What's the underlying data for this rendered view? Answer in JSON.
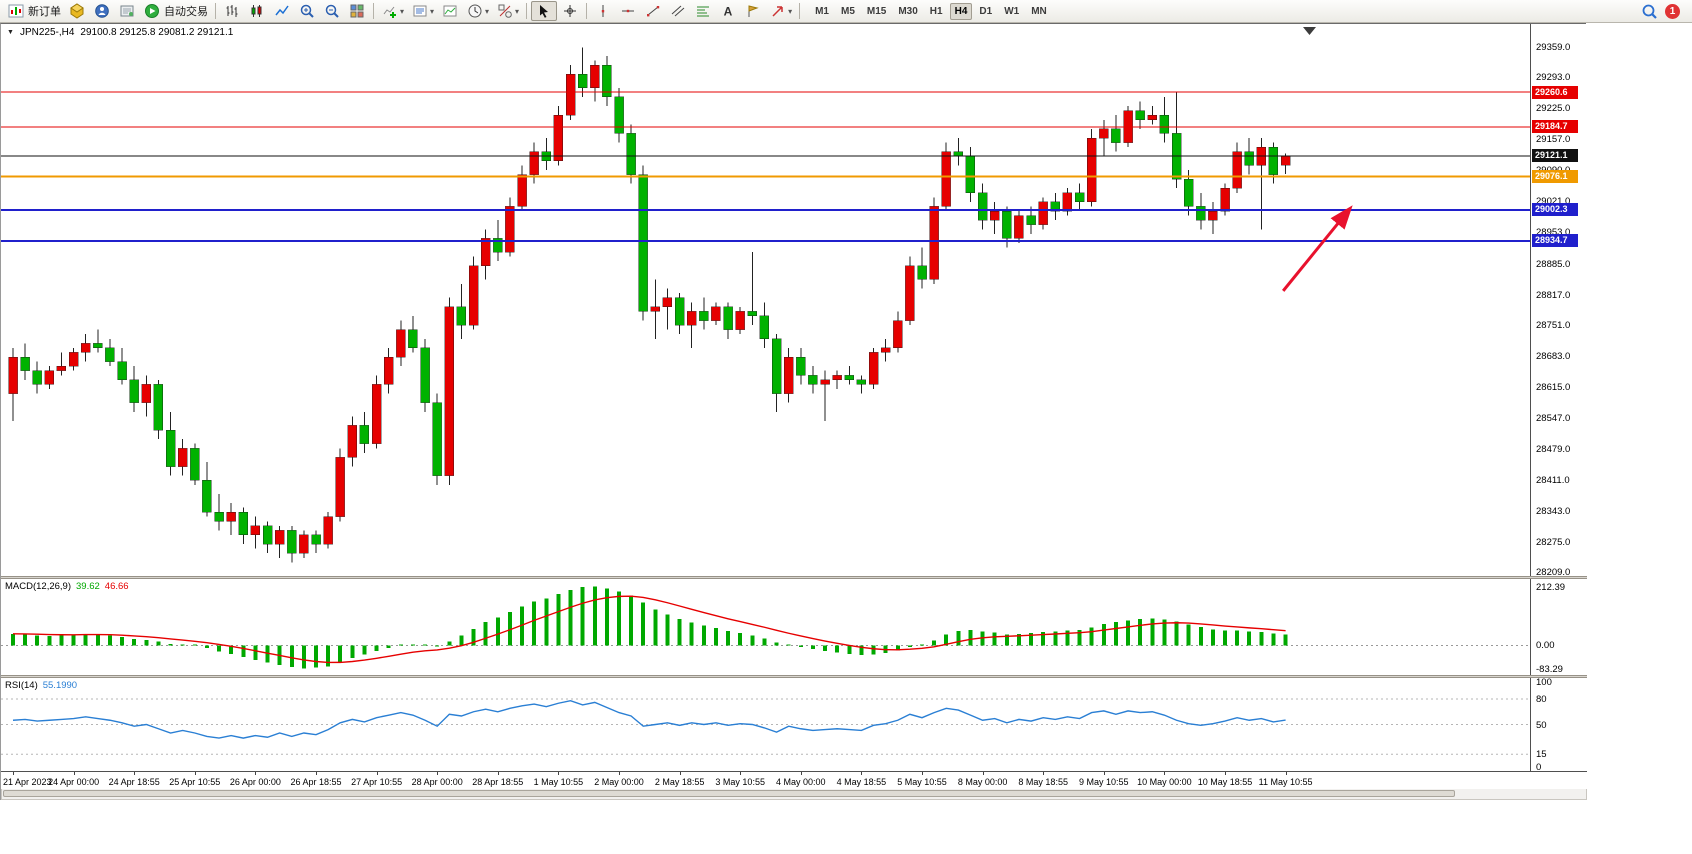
{
  "toolbar": {
    "new_order_label": "新订单",
    "auto_trading_label": "自动交易",
    "timeframes": [
      "M1",
      "M5",
      "M15",
      "M30",
      "H1",
      "H4",
      "D1",
      "W1",
      "MN"
    ],
    "active_timeframe": "H4",
    "notification_count": "1",
    "icons": [
      "new-order-icon",
      "market-watch-icon",
      "navigator-icon",
      "terminal-icon",
      "auto-trading-icon",
      "bar-chart-icon",
      "candlestick-chart-icon",
      "line-chart-icon",
      "zoom-in-icon",
      "zoom-out-icon",
      "tile-windows-icon",
      "indicators-icon",
      "indicator-list-icon",
      "template-icon",
      "period-icon",
      "objects-icon",
      "cursor-icon",
      "crosshair-icon",
      "vertical-line-icon",
      "horizontal-line-icon",
      "trendline-icon",
      "channel-icon",
      "fibonacci-icon",
      "text-icon",
      "label-icon",
      "arrow-tools-icon",
      "search-icon",
      "notification-icon"
    ]
  },
  "chart": {
    "title_symbol": "JPN225-,H4",
    "title_ohlc": "29100.8 29125.8 29081.2 29121.1",
    "macd_name": "MACD(12,26,9)",
    "macd_main_value": "39.62",
    "macd_signal_value": "46.66",
    "rsi_name": "RSI(14)",
    "rsi_value": "55.1990"
  },
  "chart_data": {
    "type": "candlestick",
    "symbol": "JPN225-",
    "period": "H4",
    "price_axis": {
      "plot_min": 28200,
      "plot_max": 29410,
      "ticks": [
        29359.0,
        29293.0,
        29225.0,
        29157.0,
        29090.0,
        29021.0,
        28953.0,
        28885.0,
        28817.0,
        28751.0,
        28683.0,
        28615.0,
        28547.0,
        28479.0,
        28411.0,
        28343.0,
        28275.0,
        28209.0
      ]
    },
    "hlines": [
      {
        "price": 29260.6,
        "label": "29260.6",
        "color": "#e60000",
        "width": 1
      },
      {
        "price": 29184.7,
        "label": "29184.7",
        "color": "#e60000",
        "width": 1
      },
      {
        "price": 29121.1,
        "label": "29121.1",
        "color": "#111111",
        "width": 1
      },
      {
        "price": 29076.1,
        "label": "29076.1",
        "color": "#f09a00",
        "width": 2
      },
      {
        "price": 29002.3,
        "label": "29002.3",
        "color": "#2020cc",
        "width": 2
      },
      {
        "price": 28934.7,
        "label": "28934.7",
        "color": "#2020cc",
        "width": 2
      }
    ],
    "time_labels": [
      "21 Apr 2023",
      "24 Apr 00:00",
      "24 Apr 18:55",
      "25 Apr 10:55",
      "26 Apr 00:00",
      "26 Apr 18:55",
      "27 Apr 10:55",
      "28 Apr 00:00",
      "28 Apr 18:55",
      "1 May 10:55",
      "2 May 00:00",
      "2 May 18:55",
      "3 May 10:55",
      "4 May 00:00",
      "4 May 18:55",
      "5 May 10:55",
      "8 May 00:00",
      "8 May 18:55",
      "9 May 10:55",
      "10 May 00:00",
      "10 May 18:55",
      "11 May 10:55"
    ],
    "label_every": 5,
    "candles": [
      [
        28600,
        28700,
        28540,
        28680
      ],
      [
        28680,
        28710,
        28630,
        28650
      ],
      [
        28650,
        28670,
        28600,
        28620
      ],
      [
        28620,
        28660,
        28610,
        28650
      ],
      [
        28650,
        28690,
        28640,
        28660
      ],
      [
        28660,
        28700,
        28650,
        28690
      ],
      [
        28690,
        28730,
        28670,
        28710
      ],
      [
        28710,
        28740,
        28690,
        28700
      ],
      [
        28700,
        28720,
        28660,
        28670
      ],
      [
        28670,
        28700,
        28620,
        28630
      ],
      [
        28630,
        28660,
        28560,
        28580
      ],
      [
        28580,
        28640,
        28550,
        28620
      ],
      [
        28620,
        28630,
        28500,
        28520
      ],
      [
        28520,
        28560,
        28420,
        28440
      ],
      [
        28440,
        28500,
        28420,
        28480
      ],
      [
        28480,
        28490,
        28400,
        28410
      ],
      [
        28410,
        28450,
        28330,
        28340
      ],
      [
        28340,
        28380,
        28300,
        28320
      ],
      [
        28320,
        28360,
        28290,
        28340
      ],
      [
        28340,
        28350,
        28270,
        28290
      ],
      [
        28290,
        28330,
        28260,
        28310
      ],
      [
        28310,
        28320,
        28250,
        28270
      ],
      [
        28270,
        28310,
        28240,
        28300
      ],
      [
        28300,
        28310,
        28230,
        28250
      ],
      [
        28250,
        28300,
        28240,
        28290
      ],
      [
        28290,
        28300,
        28250,
        28270
      ],
      [
        28270,
        28340,
        28260,
        28330
      ],
      [
        28330,
        28480,
        28320,
        28460
      ],
      [
        28460,
        28550,
        28440,
        28530
      ],
      [
        28530,
        28560,
        28470,
        28490
      ],
      [
        28490,
        28640,
        28480,
        28620
      ],
      [
        28620,
        28700,
        28600,
        28680
      ],
      [
        28680,
        28760,
        28660,
        28740
      ],
      [
        28740,
        28770,
        28690,
        28700
      ],
      [
        28700,
        28720,
        28560,
        28580
      ],
      [
        28580,
        28600,
        28400,
        28420
      ],
      [
        28420,
        28810,
        28400,
        28790
      ],
      [
        28790,
        28840,
        28720,
        28750
      ],
      [
        28750,
        28900,
        28740,
        28880
      ],
      [
        28880,
        28960,
        28850,
        28940
      ],
      [
        28940,
        28980,
        28890,
        28910
      ],
      [
        28910,
        29030,
        28900,
        29010
      ],
      [
        29010,
        29100,
        29000,
        29080
      ],
      [
        29080,
        29150,
        29060,
        29130
      ],
      [
        29130,
        29160,
        29090,
        29110
      ],
      [
        29110,
        29230,
        29100,
        29210
      ],
      [
        29210,
        29320,
        29200,
        29300
      ],
      [
        29300,
        29359,
        29250,
        29270
      ],
      [
        29270,
        29330,
        29240,
        29320
      ],
      [
        29320,
        29340,
        29230,
        29250
      ],
      [
        29250,
        29270,
        29150,
        29170
      ],
      [
        29170,
        29190,
        29060,
        29080
      ],
      [
        29080,
        29100,
        28760,
        28780
      ],
      [
        28780,
        28850,
        28720,
        28790
      ],
      [
        28790,
        28830,
        28740,
        28810
      ],
      [
        28810,
        28820,
        28730,
        28750
      ],
      [
        28750,
        28800,
        28700,
        28780
      ],
      [
        28780,
        28810,
        28740,
        28760
      ],
      [
        28760,
        28800,
        28750,
        28790
      ],
      [
        28790,
        28800,
        28720,
        28740
      ],
      [
        28740,
        28790,
        28730,
        28780
      ],
      [
        28780,
        28910,
        28750,
        28770
      ],
      [
        28770,
        28800,
        28700,
        28720
      ],
      [
        28720,
        28730,
        28560,
        28600
      ],
      [
        28600,
        28700,
        28580,
        28680
      ],
      [
        28680,
        28700,
        28620,
        28640
      ],
      [
        28640,
        28660,
        28600,
        28620
      ],
      [
        28620,
        28650,
        28540,
        28630
      ],
      [
        28630,
        28650,
        28610,
        28640
      ],
      [
        28640,
        28660,
        28620,
        28630
      ],
      [
        28630,
        28640,
        28600,
        28620
      ],
      [
        28620,
        28700,
        28610,
        28690
      ],
      [
        28690,
        28720,
        28670,
        28700
      ],
      [
        28700,
        28780,
        28690,
        28760
      ],
      [
        28760,
        28900,
        28750,
        28880
      ],
      [
        28880,
        28920,
        28830,
        28850
      ],
      [
        28850,
        29030,
        28840,
        29010
      ],
      [
        29010,
        29150,
        29000,
        29130
      ],
      [
        29130,
        29160,
        29100,
        29120
      ],
      [
        29120,
        29140,
        29020,
        29040
      ],
      [
        29040,
        29060,
        28960,
        28980
      ],
      [
        28980,
        29020,
        28950,
        29000
      ],
      [
        29000,
        29010,
        28920,
        28940
      ],
      [
        28940,
        29000,
        28930,
        28990
      ],
      [
        28990,
        29010,
        28950,
        28970
      ],
      [
        28970,
        29030,
        28960,
        29020
      ],
      [
        29020,
        29040,
        28980,
        29000
      ],
      [
        29000,
        29050,
        28990,
        29040
      ],
      [
        29040,
        29060,
        29000,
        29020
      ],
      [
        29020,
        29180,
        29010,
        29160
      ],
      [
        29160,
        29200,
        29120,
        29180
      ],
      [
        29180,
        29210,
        29130,
        29150
      ],
      [
        29150,
        29230,
        29140,
        29220
      ],
      [
        29220,
        29240,
        29180,
        29200
      ],
      [
        29200,
        29230,
        29190,
        29210
      ],
      [
        29210,
        29250,
        29150,
        29170
      ],
      [
        29170,
        29260,
        29050,
        29070
      ],
      [
        29070,
        29090,
        28990,
        29010
      ],
      [
        29010,
        29040,
        28960,
        28980
      ],
      [
        28980,
        29020,
        28950,
        29000
      ],
      [
        29000,
        29060,
        28990,
        29050
      ],
      [
        29050,
        29150,
        29040,
        29130
      ],
      [
        29130,
        29160,
        29080,
        29100
      ],
      [
        29100,
        29160,
        28960,
        29140
      ],
      [
        29140,
        29150,
        29060,
        29080
      ],
      [
        29100.8,
        29125.8,
        29081.2,
        29121.1
      ]
    ],
    "macd": {
      "params": "12,26,9",
      "axis_ticks": [
        212.39,
        0.0,
        -83.29
      ],
      "range": [
        -92,
        225
      ],
      "values": [
        42,
        40,
        36,
        34,
        36,
        38,
        42,
        40,
        36,
        30,
        24,
        20,
        14,
        6,
        2,
        -2,
        -10,
        -22,
        -30,
        -42,
        -52,
        -62,
        -70,
        -78,
        -83,
        -80,
        -75,
        -60,
        -45,
        -32,
        -20,
        -10,
        -2,
        4,
        2,
        -4,
        15,
        35,
        60,
        85,
        100,
        120,
        140,
        158,
        170,
        185,
        200,
        210,
        212,
        205,
        195,
        180,
        155,
        130,
        112,
        95,
        82,
        72,
        62,
        52,
        45,
        35,
        25,
        10,
        2,
        -5,
        -12,
        -20,
        -25,
        -30,
        -35,
        -32,
        -28,
        -18,
        -5,
        2,
        18,
        40,
        52,
        55,
        50,
        46,
        40,
        42,
        45,
        48,
        50,
        53,
        55,
        65,
        78,
        84,
        90,
        95,
        97,
        94,
        86,
        76,
        66,
        58,
        54,
        54,
        50,
        48,
        43,
        39.62
      ]
    },
    "rsi": {
      "params": "14",
      "axis_ticks": [
        100,
        80,
        50,
        15,
        0
      ],
      "levels": [
        80,
        50,
        15
      ],
      "range": [
        0,
        100
      ],
      "values": [
        55,
        56,
        54,
        55,
        56,
        57,
        59,
        57,
        55,
        52,
        48,
        50,
        45,
        40,
        43,
        40,
        36,
        34,
        37,
        34,
        37,
        35,
        40,
        36,
        40,
        38,
        44,
        52,
        56,
        53,
        58,
        61,
        64,
        61,
        55,
        48,
        62,
        60,
        65,
        68,
        65,
        69,
        72,
        74,
        71,
        75,
        78,
        73,
        76,
        70,
        64,
        60,
        48,
        50,
        52,
        49,
        52,
        50,
        52,
        49,
        51,
        50,
        46,
        41,
        48,
        45,
        43,
        44,
        45,
        44,
        43,
        49,
        51,
        55,
        62,
        58,
        64,
        69,
        67,
        61,
        55,
        57,
        52,
        56,
        54,
        58,
        56,
        59,
        57,
        64,
        66,
        62,
        66,
        64,
        65,
        61,
        55,
        51,
        49,
        51,
        54,
        58,
        55,
        57,
        53,
        55.2
      ]
    },
    "colors": {
      "up": "#e60000",
      "down": "#00b200",
      "wick": "#222222",
      "macd_hist": "#00a800",
      "macd_signal": "#e60000",
      "rsi_line": "#2a7fd4",
      "current_price": "#111111"
    },
    "annotation_arrow": {
      "tail": {
        "index": 104.8,
        "price": 28825
      },
      "head": {
        "index": 110.3,
        "price": 29005
      },
      "color": "#e8112d"
    }
  }
}
